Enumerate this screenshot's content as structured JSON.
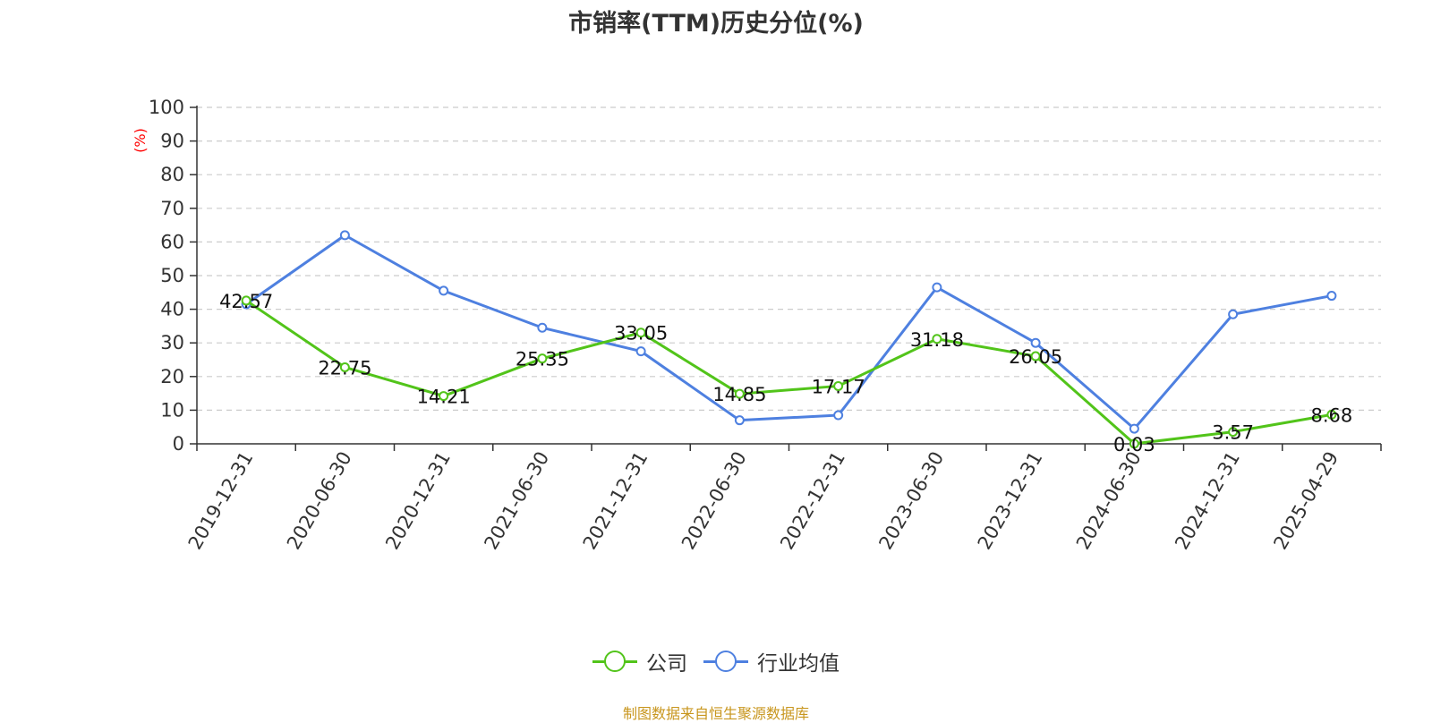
{
  "colors": {
    "company": "#52c41a",
    "industry": "#4e80e0",
    "ylabel": "#ff0000",
    "source": "#c8961e",
    "grid": "#cccccc",
    "axis": "#333333"
  },
  "source": "制图数据来自恒生聚源数据库",
  "chart_data": {
    "type": "line",
    "title": "市销率(TTM)历史分位(%)",
    "xlabel": "",
    "ylabel": "(%)",
    "ylim": [
      0,
      100
    ],
    "yticks": [
      0,
      10,
      20,
      30,
      40,
      50,
      60,
      70,
      80,
      90,
      100
    ],
    "grid": "horizontal dashed",
    "legend_position": "bottom",
    "categories": [
      "2019-12-31",
      "2020-06-30",
      "2020-12-31",
      "2021-06-30",
      "2021-12-31",
      "2022-06-30",
      "2022-12-31",
      "2023-06-30",
      "2023-12-31",
      "2024-06-30",
      "2024-12-31",
      "2025-04-29"
    ],
    "series": [
      {
        "name": "公司",
        "values": [
          42.57,
          22.75,
          14.21,
          25.35,
          33.05,
          14.85,
          17.17,
          31.18,
          26.05,
          0.03,
          3.57,
          8.68
        ],
        "data_labels": [
          "42.57",
          "22.75",
          "14.21",
          "25.35",
          "33.05",
          "14.85",
          "17.17",
          "31.18",
          "26.05",
          "0.03",
          "3.57",
          "8.68"
        ]
      },
      {
        "name": "行业均值",
        "values": [
          41.5,
          62,
          45.5,
          34.5,
          27.5,
          7,
          8.5,
          46.5,
          30,
          4.5,
          38.5,
          44
        ]
      }
    ]
  }
}
